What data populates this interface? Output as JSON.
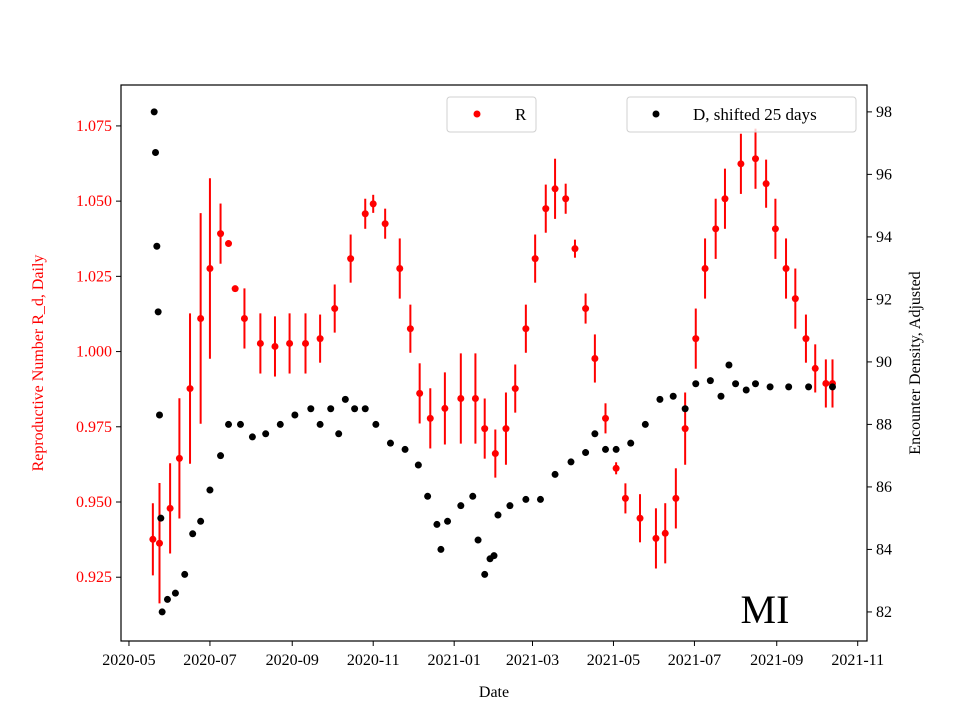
{
  "chart_data": {
    "type": "scatter",
    "title": "",
    "annotation": "MI",
    "xlabel": "Date",
    "ylabel_left": "Reproductive Number R_d, Daily",
    "ylabel_right": "Encounter Density, Adjusted",
    "xlim": [
      "2020-04-25",
      "2021-11-08"
    ],
    "ylim_left": [
      0.9038,
      1.0886
    ],
    "ylim_right": [
      81.07,
      98.86
    ],
    "x_ticks": [
      "2020-05",
      "2020-07",
      "2020-09",
      "2020-11",
      "2021-01",
      "2021-03",
      "2021-05",
      "2021-07",
      "2021-09",
      "2021-11"
    ],
    "y_ticks_left": [
      "0.925",
      "0.950",
      "0.975",
      "1.000",
      "1.025",
      "1.050",
      "1.075"
    ],
    "y_ticks_right": [
      "82",
      "84",
      "86",
      "88",
      "90",
      "92",
      "94",
      "96",
      "98"
    ],
    "grid": false,
    "colors": {
      "R": "#ff0000",
      "D": "#000000"
    },
    "legend": [
      {
        "label": "R",
        "placement": "top-center"
      },
      {
        "label": "D, shifted 25 days",
        "placement": "top-right"
      }
    ],
    "series": [
      {
        "name": "R",
        "axis": "left",
        "x": [
          "2020-05-19",
          "2020-05-24",
          "2020-06-01",
          "2020-06-08",
          "2020-06-16",
          "2020-06-24",
          "2020-07-01",
          "2020-07-09",
          "2020-07-15",
          "2020-07-20",
          "2020-07-27",
          "2020-08-08",
          "2020-08-19",
          "2020-08-30",
          "2020-09-11",
          "2020-09-22",
          "2020-10-03",
          "2020-10-15",
          "2020-10-26",
          "2020-11-01",
          "2020-11-10",
          "2020-11-21",
          "2020-11-29",
          "2020-12-06",
          "2020-12-14",
          "2020-12-25",
          "2021-01-06",
          "2021-01-17",
          "2021-01-24",
          "2021-02-01",
          "2021-02-09",
          "2021-02-16",
          "2021-02-24",
          "2021-03-03",
          "2021-03-11",
          "2021-03-18",
          "2021-03-26",
          "2021-04-02",
          "2021-04-10",
          "2021-04-17",
          "2021-04-25",
          "2021-05-03",
          "2021-05-10",
          "2021-05-21",
          "2021-06-02",
          "2021-06-09",
          "2021-06-17",
          "2021-06-24",
          "2021-07-02",
          "2021-07-09",
          "2021-07-17",
          "2021-07-24",
          "2021-08-05",
          "2021-08-16",
          "2021-08-24",
          "2021-08-31",
          "2021-09-08",
          "2021-09-15",
          "2021-09-23",
          "2021-09-30",
          "2021-10-08",
          "2021-10-13"
        ],
        "y": [
          0.9376,
          0.9363,
          0.9479,
          0.9645,
          0.9877,
          1.011,
          1.0276,
          1.0392,
          1.0359,
          1.0209,
          1.011,
          1.0027,
          1.0017,
          1.0027,
          1.0027,
          1.0043,
          1.0143,
          1.0309,
          1.0458,
          1.0491,
          1.0425,
          1.0276,
          1.0076,
          0.9861,
          0.9778,
          0.9811,
          0.9844,
          0.9844,
          0.9744,
          0.9661,
          0.9744,
          0.9877,
          1.0076,
          1.0309,
          1.0475,
          1.0541,
          1.0508,
          1.0342,
          1.0143,
          0.9977,
          0.9778,
          0.9612,
          0.9512,
          0.9446,
          0.9379,
          0.9396,
          0.9512,
          0.9744,
          1.0043,
          1.0276,
          1.0408,
          1.0508,
          1.0624,
          1.0641,
          1.0558,
          1.0408,
          1.0276,
          1.0176,
          1.0043,
          0.9944,
          0.9894,
          0.9894
        ],
        "yerr": [
          0.012,
          0.02,
          0.015,
          0.02,
          0.025,
          0.035,
          0.03,
          0.01,
          0,
          0,
          0.01,
          0.01,
          0.01,
          0.01,
          0.01,
          0.008,
          0.008,
          0.008,
          0.005,
          0.003,
          0.005,
          0.01,
          0.008,
          0.01,
          0.01,
          0.012,
          0.015,
          0.015,
          0.01,
          0.008,
          0.012,
          0.008,
          0.008,
          0.008,
          0.008,
          0.01,
          0.005,
          0.003,
          0.005,
          0.008,
          0.005,
          0.002,
          0.005,
          0.008,
          0.01,
          0.01,
          0.01,
          0.012,
          0.01,
          0.01,
          0.01,
          0.01,
          0.01,
          0.01,
          0.008,
          0.01,
          0.01,
          0.01,
          0.008,
          0.008,
          0.008,
          0.008
        ]
      },
      {
        "name": "D, shifted 25 days",
        "axis": "right",
        "x": [
          "2020-05-20",
          "2020-05-21",
          "2020-05-22",
          "2020-05-23",
          "2020-05-24",
          "2020-05-25",
          "2020-05-26",
          "2020-05-30",
          "2020-06-05",
          "2020-06-12",
          "2020-06-18",
          "2020-06-24",
          "2020-07-01",
          "2020-07-09",
          "2020-07-15",
          "2020-07-24",
          "2020-08-02",
          "2020-08-12",
          "2020-08-23",
          "2020-09-03",
          "2020-09-15",
          "2020-09-22",
          "2020-09-30",
          "2020-10-06",
          "2020-10-11",
          "2020-10-18",
          "2020-10-26",
          "2020-11-03",
          "2020-11-14",
          "2020-11-25",
          "2020-12-05",
          "2020-12-12",
          "2020-12-19",
          "2020-12-22",
          "2020-12-27",
          "2021-01-06",
          "2021-01-15",
          "2021-01-19",
          "2021-01-24",
          "2021-01-28",
          "2021-01-31",
          "2021-02-03",
          "2021-02-12",
          "2021-02-24",
          "2021-03-07",
          "2021-03-18",
          "2021-03-30",
          "2021-04-10",
          "2021-04-17",
          "2021-04-25",
          "2021-05-03",
          "2021-05-14",
          "2021-05-25",
          "2021-06-05",
          "2021-06-15",
          "2021-06-24",
          "2021-07-02",
          "2021-07-13",
          "2021-07-21",
          "2021-07-27",
          "2021-08-01",
          "2021-08-09",
          "2021-08-16",
          "2021-08-27",
          "2021-09-10",
          "2021-09-25",
          "2021-10-13"
        ],
        "y": [
          98.0,
          96.7,
          93.7,
          91.6,
          88.3,
          85.0,
          82.0,
          82.4,
          82.6,
          83.2,
          84.5,
          84.9,
          85.9,
          87.0,
          88.0,
          88.0,
          87.6,
          87.7,
          88.0,
          88.3,
          88.5,
          88.0,
          88.5,
          87.7,
          88.8,
          88.5,
          88.5,
          88.0,
          87.4,
          87.2,
          86.7,
          85.7,
          84.8,
          84.0,
          84.9,
          85.4,
          85.7,
          84.3,
          83.2,
          83.7,
          83.8,
          85.1,
          85.4,
          85.6,
          85.6,
          86.4,
          86.8,
          87.1,
          87.7,
          87.2,
          87.2,
          87.4,
          88.0,
          88.8,
          88.9,
          88.5,
          89.3,
          89.4,
          88.9,
          89.9,
          89.3,
          89.1,
          89.3,
          89.2,
          89.2,
          89.2,
          89.2
        ]
      }
    ]
  }
}
